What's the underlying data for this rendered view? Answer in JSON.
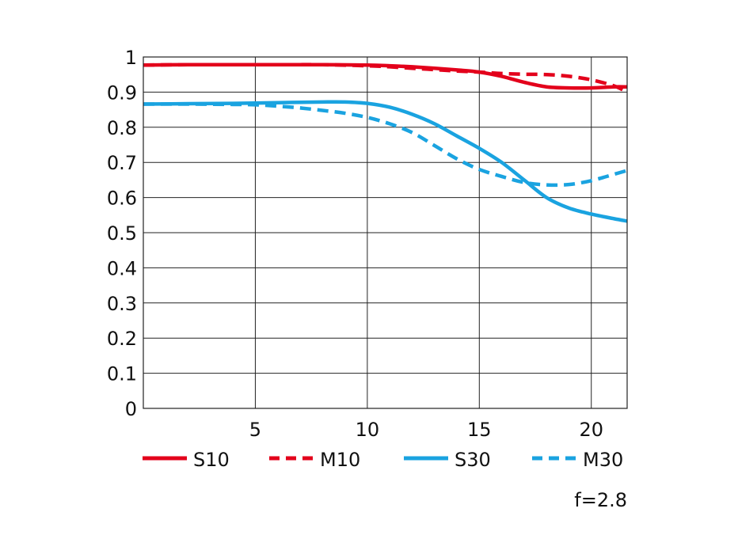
{
  "chart_data": {
    "type": "line",
    "xlim": [
      0,
      21.6
    ],
    "ylim": [
      0,
      1
    ],
    "x_ticks": [
      5,
      10,
      15,
      20
    ],
    "x_tick_labels": [
      "5",
      "10",
      "15",
      "20"
    ],
    "y_ticks": [
      0,
      0.1,
      0.2,
      0.3,
      0.4,
      0.5,
      0.6,
      0.7,
      0.8,
      0.9,
      1
    ],
    "y_tick_labels": [
      "0",
      "0.1",
      "0.2",
      "0.3",
      "0.4",
      "0.5",
      "0.6",
      "0.7",
      "0.8",
      "0.9",
      "1"
    ],
    "grid": true,
    "legend_position": "bottom",
    "annotation": "f=2.8",
    "series": [
      {
        "name": "S10",
        "color": "#e3001b",
        "style": "solid",
        "x": [
          0,
          2,
          4,
          6,
          8,
          10,
          11,
          12,
          13,
          14,
          15,
          16,
          17,
          18,
          19,
          20,
          21,
          21.6
        ],
        "y": [
          0.977,
          0.978,
          0.978,
          0.978,
          0.978,
          0.977,
          0.975,
          0.972,
          0.968,
          0.963,
          0.957,
          0.945,
          0.928,
          0.915,
          0.912,
          0.912,
          0.915,
          0.915
        ]
      },
      {
        "name": "M10",
        "color": "#e3001b",
        "style": "dashed",
        "x": [
          0,
          2,
          4,
          6,
          8,
          10,
          11,
          12,
          13,
          14,
          15,
          16,
          17,
          18,
          19,
          20,
          21,
          21.6
        ],
        "y": [
          0.977,
          0.978,
          0.978,
          0.978,
          0.978,
          0.975,
          0.972,
          0.968,
          0.964,
          0.96,
          0.957,
          0.953,
          0.951,
          0.95,
          0.945,
          0.935,
          0.918,
          0.9
        ]
      },
      {
        "name": "S30",
        "color": "#1aa3e0",
        "style": "solid",
        "x": [
          0,
          2,
          4,
          6,
          8,
          9,
          10,
          11,
          12,
          13,
          14,
          15,
          16,
          17,
          18,
          19,
          20,
          21,
          21.6
        ],
        "y": [
          0.866,
          0.867,
          0.868,
          0.87,
          0.872,
          0.872,
          0.868,
          0.857,
          0.837,
          0.81,
          0.775,
          0.74,
          0.7,
          0.65,
          0.6,
          0.57,
          0.553,
          0.54,
          0.533
        ]
      },
      {
        "name": "M30",
        "color": "#1aa3e0",
        "style": "dashed",
        "x": [
          0,
          2,
          4,
          5,
          6,
          7,
          8,
          9,
          10,
          11,
          12,
          13,
          14,
          15,
          16,
          17,
          18,
          19,
          20,
          21,
          21.6
        ],
        "y": [
          0.866,
          0.866,
          0.865,
          0.864,
          0.86,
          0.855,
          0.848,
          0.84,
          0.828,
          0.81,
          0.785,
          0.748,
          0.71,
          0.68,
          0.66,
          0.643,
          0.636,
          0.637,
          0.648,
          0.666,
          0.677
        ]
      }
    ]
  }
}
